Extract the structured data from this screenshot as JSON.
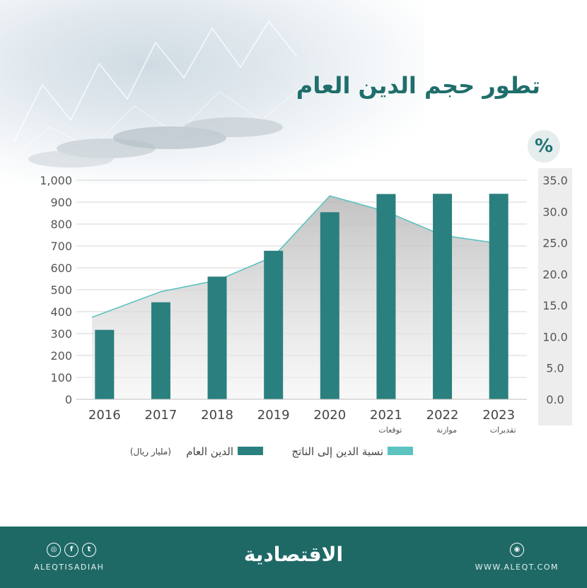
{
  "title": "تطور حجم الدين العام",
  "right_axis_badge": "%",
  "legend": {
    "debt_label": "الدين العام",
    "debt_unit": "(مليار ريال)",
    "ratio_label": "نسبة الدين إلى الناتج"
  },
  "footer": {
    "brand": "الاقتصادية",
    "handle": "ALEQTISADIAH",
    "site": "WWW.ALEQT.COM",
    "icons": [
      "instagram-icon",
      "facebook-icon",
      "twitter-icon",
      "web-icon"
    ]
  },
  "colors": {
    "bar": "#2a807e",
    "line": "#5cc3c0",
    "title": "#1f6e6b",
    "footer": "#1e6966"
  },
  "chart_data": {
    "type": "bar",
    "categories": [
      "2016",
      "2017",
      "2018",
      "2019",
      "2020",
      "2021",
      "2022",
      "2023"
    ],
    "category_notes": [
      "",
      "",
      "",
      "",
      "",
      "توقعات",
      "موازنة",
      "تقديرات"
    ],
    "series": [
      {
        "name": "الدين العام",
        "type": "bar",
        "axis": "left",
        "values": [
          317,
          443,
          560,
          678,
          854,
          937,
          938,
          938
        ]
      },
      {
        "name": "نسبة الدين إلى الناتج",
        "type": "area",
        "axis": "right",
        "values": [
          13.1,
          17.2,
          19.0,
          22.8,
          32.5,
          30.0,
          26.2,
          24.9
        ]
      }
    ],
    "y_left": {
      "ylim": [
        0,
        1000
      ],
      "ticks": [
        "0",
        "100",
        "200",
        "300",
        "400",
        "500",
        "600",
        "700",
        "800",
        "900",
        "1,000"
      ]
    },
    "y_right": {
      "ylim": [
        0,
        35
      ],
      "ticks": [
        "0.0",
        "5.0",
        "10.0",
        "15.0",
        "20.0",
        "25.0",
        "30.0",
        "35.0"
      ]
    },
    "grid": true,
    "legend_position": "bottom"
  }
}
